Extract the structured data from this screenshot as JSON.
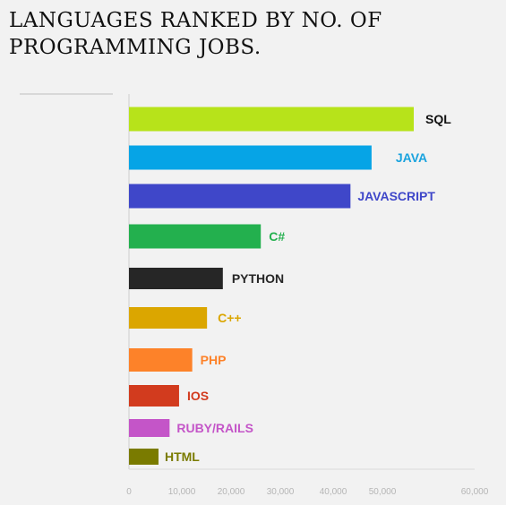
{
  "title": {
    "line1": "LANGUAGES RANKED BY NO. OF",
    "line2": "PROGRAMMING JOBS."
  },
  "chart_data": {
    "type": "bar",
    "orientation": "horizontal",
    "categories": [
      "SQL",
      "JAVA",
      "JAVASCRIPT",
      "C#",
      "PYTHON",
      "C++",
      "PHP",
      "IOS",
      "RUBY/RAILS",
      "HTML"
    ],
    "values": [
      54000,
      46000,
      42000,
      25000,
      17800,
      14800,
      12000,
      9500,
      7700,
      5600
    ],
    "colors": [
      "#b7e31a",
      "#06a4e6",
      "#3f47c9",
      "#23b04e",
      "#262626",
      "#dba600",
      "#fd8229",
      "#d23b1e",
      "#c455c8",
      "#7a7b00"
    ],
    "label_colors": [
      "#111111",
      "#1aa3de",
      "#3f47c9",
      "#23b04e",
      "#262626",
      "#dba600",
      "#fd8229",
      "#d23b1e",
      "#c455c8",
      "#7a7b00"
    ],
    "x_ticks": [
      "0",
      "10,000",
      "20,000",
      "30,000",
      "40,000",
      "50,000",
      "60,000"
    ],
    "xlim": [
      0,
      65000
    ],
    "grid": false,
    "legend": "none"
  }
}
